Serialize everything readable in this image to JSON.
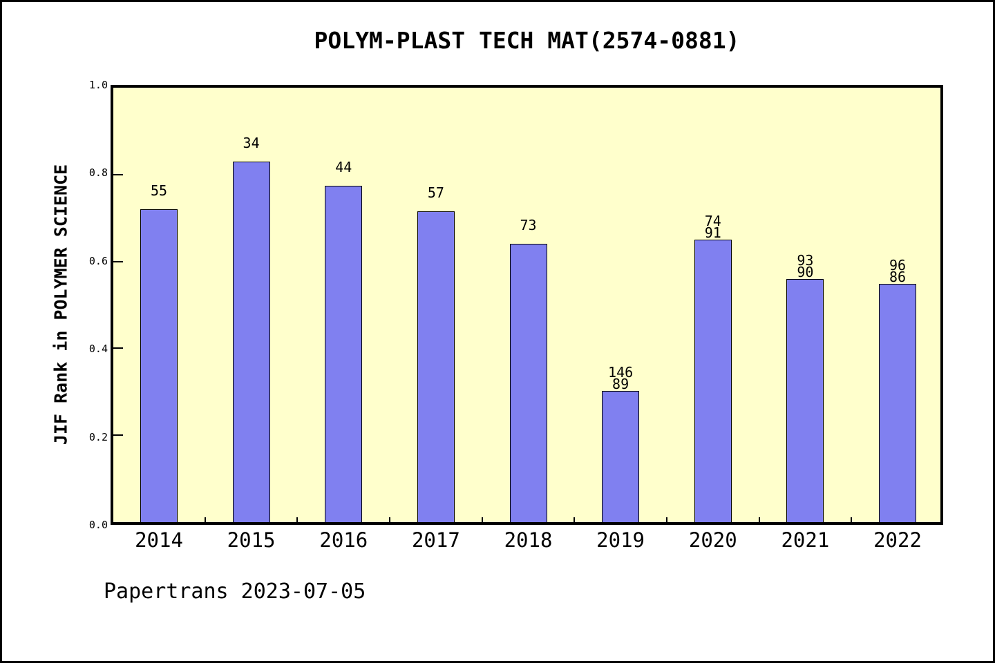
{
  "frame": {
    "background": "#FFFFFF",
    "border_color": "#000000"
  },
  "chart_data": {
    "type": "bar",
    "title": "POLYM-PLAST TECH MAT(2574-0881)",
    "ylabel": "JIF Rank in POLYMER SCIENCE",
    "xlabel": "",
    "footer": "Papertrans 2023-07-05",
    "legend_position": "none",
    "grid": false,
    "plot_background": "#FFFFCC",
    "bar_fill_color": "#8080F0",
    "bar_border_color": "#000000",
    "ylim": [
      0.0,
      1.0
    ],
    "ytick_labels": [
      "0.0",
      "0.2",
      "0.4",
      "0.6",
      "0.8",
      "1.0"
    ],
    "ytick_values": [
      0.0,
      0.2,
      0.4,
      0.6,
      0.8,
      1.0
    ],
    "categories": [
      "2014",
      "2015",
      "2016",
      "2017",
      "2018",
      "2019",
      "2020",
      "2021",
      "2022"
    ],
    "values": [
      0.72,
      0.83,
      0.775,
      0.715,
      0.64,
      0.302,
      0.65,
      0.56,
      0.548
    ],
    "bar_labels": [
      [
        "55"
      ],
      [
        "34"
      ],
      [
        "44"
      ],
      [
        "57"
      ],
      [
        "73"
      ],
      [
        "146",
        "89"
      ],
      [
        "74",
        "91"
      ],
      [
        "93",
        "90"
      ],
      [
        "96",
        "86"
      ]
    ]
  }
}
